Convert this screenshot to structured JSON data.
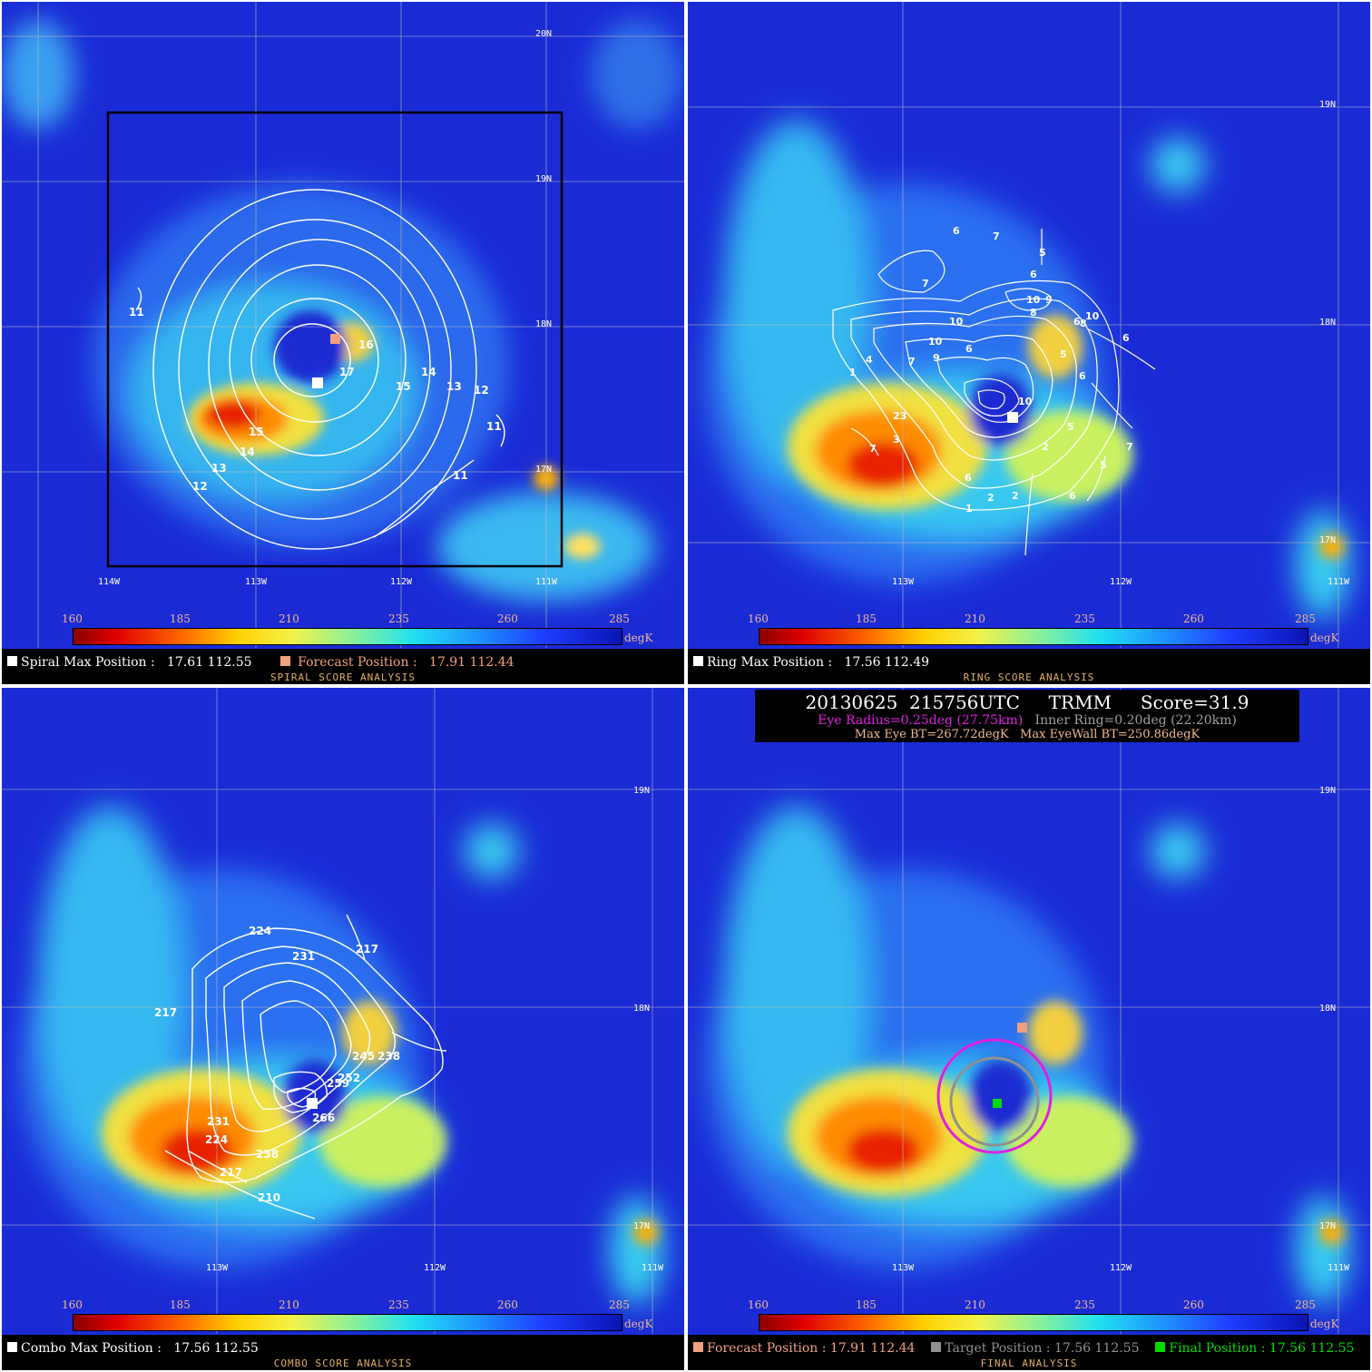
{
  "colorbar": {
    "ticks": [
      "160",
      "185",
      "210",
      "235",
      "260",
      "285"
    ],
    "unit": "degK"
  },
  "colors": {
    "ocean_bg": "#1a2bd6",
    "contour": "#ffffff",
    "spiral_max_marker": "#ffffff",
    "forecast_marker": "#f0a080",
    "final_marker": "#00dd00",
    "eye_circle": "#e020e0",
    "inner_ring": "#909090"
  },
  "panels": {
    "spiral": {
      "lat_labels": [
        "20N",
        "19N",
        "18N",
        "17N"
      ],
      "lon_labels": [
        "114W",
        "113W",
        "112W",
        "111W"
      ],
      "contour_labels": [
        "11",
        "11",
        "11",
        "11",
        "12",
        "12",
        "13",
        "13",
        "14",
        "14",
        "15",
        "15",
        "16",
        "17"
      ],
      "footer": {
        "max_label": "Spiral Max Position :",
        "max_value": "17.61 112.55",
        "forecast_label": "Forecast Position :",
        "forecast_value": "17.91 112.44",
        "title": "SPIRAL SCORE ANALYSIS"
      }
    },
    "ring": {
      "lat_labels": [
        "19N",
        "18N",
        "17N"
      ],
      "lon_labels": [
        "113W",
        "112W",
        "111W"
      ],
      "contour_labels": [
        "6",
        "7",
        "5",
        "7",
        "6",
        "10",
        "9",
        "8",
        "10",
        "6",
        "10",
        "6",
        "9",
        "7",
        "1",
        "4",
        "10",
        "6",
        "5",
        "10",
        "6",
        "23",
        "3",
        "7",
        "6",
        "5",
        "2",
        "7",
        "2",
        "2",
        "1",
        "6",
        "5",
        "8"
      ],
      "footer": {
        "max_label": "Ring Max Position :",
        "max_value": "17.56 112.49",
        "title": "RING SCORE ANALYSIS"
      }
    },
    "combo": {
      "lat_labels": [
        "19N",
        "18N",
        "17N"
      ],
      "lon_labels": [
        "113W",
        "112W",
        "111W"
      ],
      "contour_labels": [
        "224",
        "231",
        "217",
        "217",
        "245",
        "238",
        "252",
        "259",
        "266",
        "231",
        "224",
        "238",
        "217",
        "210"
      ],
      "footer": {
        "max_label": "Combo Max Position :",
        "max_value": "17.56 112.55",
        "title": "COMBO SCORE ANALYSIS"
      }
    },
    "final": {
      "lat_labels": [
        "19N",
        "18N",
        "17N"
      ],
      "lon_labels": [
        "113W",
        "112W",
        "111W"
      ],
      "info": {
        "line1": "20130625  215756UTC     TRMM     Score=31.9",
        "eye_radius": "Eye Radius=0.25deg (27.75km)",
        "inner_ring": "Inner Ring=0.20deg (22.20km)",
        "max_eye_bt": "Max Eye BT=267.72degK",
        "max_eyewall_bt": "Max EyeWall BT=250.86degK"
      },
      "footer": {
        "forecast_label": "Forecast Position :",
        "forecast_value": "17.91 112.44",
        "target_label": "Target Position :",
        "target_value": "17.56 112.55",
        "final_label": "Final Position :",
        "final_value": "17.56 112.55",
        "title": "FINAL ANALYSIS"
      }
    }
  }
}
